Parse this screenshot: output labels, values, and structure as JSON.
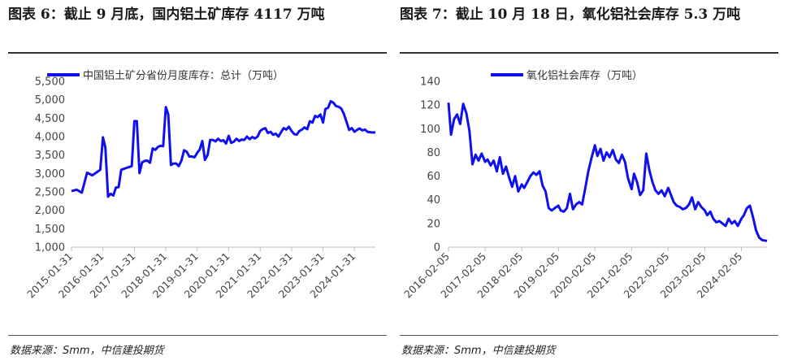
{
  "source_text": "数据来源：Smm，中信建投期货",
  "chart_data": [
    {
      "type": "line",
      "figure_title": "图表 6：截止 9 月底，国内铝土矿库存 4117 万吨",
      "series": [
        {
          "name": "中国铝土矿分省份月度库存：总计（万吨）",
          "color": "#1010ee"
        }
      ],
      "ylim": [
        1000,
        5500
      ],
      "yticks": [
        "1,000",
        "1,500",
        "2,000",
        "2,500",
        "3,000",
        "3,500",
        "4,000",
        "4,500",
        "5,000",
        "5,500"
      ],
      "xticks": [
        "2015-01-31",
        "2016-01-31",
        "2017-01-31",
        "2018-01-31",
        "2019-01-31",
        "2020-01-31",
        "2021-01-31",
        "2022-01-31",
        "2023-01-31",
        "2024-01-31"
      ],
      "xstart": "2015-01-31",
      "xend": "2024-09-30",
      "points": [
        [
          "2015-01-31",
          2520
        ],
        [
          "2015-03-31",
          2560
        ],
        [
          "2015-05-31",
          2480
        ],
        [
          "2015-07-31",
          3020
        ],
        [
          "2015-09-30",
          2950
        ],
        [
          "2015-11-30",
          3050
        ],
        [
          "2015-12-31",
          3100
        ],
        [
          "2016-01-31",
          3980
        ],
        [
          "2016-02-29",
          3700
        ],
        [
          "2016-03-31",
          2370
        ],
        [
          "2016-04-30",
          2450
        ],
        [
          "2016-05-31",
          2400
        ],
        [
          "2016-06-30",
          2620
        ],
        [
          "2016-07-31",
          2630
        ],
        [
          "2016-08-31",
          3100
        ],
        [
          "2016-10-31",
          3150
        ],
        [
          "2016-12-31",
          3200
        ],
        [
          "2017-01-31",
          4420
        ],
        [
          "2017-02-28",
          4420
        ],
        [
          "2017-03-31",
          3010
        ],
        [
          "2017-04-30",
          3300
        ],
        [
          "2017-05-31",
          3340
        ],
        [
          "2017-06-30",
          3350
        ],
        [
          "2017-07-31",
          3290
        ],
        [
          "2017-08-31",
          3680
        ],
        [
          "2017-09-30",
          3640
        ],
        [
          "2017-10-31",
          3720
        ],
        [
          "2017-11-30",
          3750
        ],
        [
          "2017-12-31",
          3740
        ],
        [
          "2018-01-31",
          4800
        ],
        [
          "2018-02-28",
          4600
        ],
        [
          "2018-03-31",
          3230
        ],
        [
          "2018-04-30",
          3270
        ],
        [
          "2018-05-31",
          3270
        ],
        [
          "2018-06-30",
          3200
        ],
        [
          "2018-07-31",
          3350
        ],
        [
          "2018-08-31",
          3630
        ],
        [
          "2018-09-30",
          3590
        ],
        [
          "2018-10-31",
          3460
        ],
        [
          "2018-11-30",
          3460
        ],
        [
          "2018-12-31",
          3440
        ],
        [
          "2019-01-31",
          3560
        ],
        [
          "2019-02-28",
          3650
        ],
        [
          "2019-03-31",
          3880
        ],
        [
          "2019-04-30",
          3370
        ],
        [
          "2019-05-31",
          3500
        ],
        [
          "2019-06-30",
          3910
        ],
        [
          "2019-07-31",
          3910
        ],
        [
          "2019-08-31",
          3870
        ],
        [
          "2019-09-30",
          3940
        ],
        [
          "2019-10-31",
          3880
        ],
        [
          "2019-11-30",
          3900
        ],
        [
          "2019-12-31",
          3810
        ],
        [
          "2020-01-31",
          4020
        ],
        [
          "2020-02-29",
          3830
        ],
        [
          "2020-03-31",
          3860
        ],
        [
          "2020-04-30",
          3940
        ],
        [
          "2020-05-31",
          3880
        ],
        [
          "2020-06-30",
          3920
        ],
        [
          "2020-07-31",
          3910
        ],
        [
          "2020-08-31",
          4000
        ],
        [
          "2020-09-30",
          3930
        ],
        [
          "2020-10-31",
          3990
        ],
        [
          "2020-11-30",
          3950
        ],
        [
          "2020-12-31",
          4000
        ],
        [
          "2021-01-31",
          4150
        ],
        [
          "2021-02-28",
          4200
        ],
        [
          "2021-03-31",
          4230
        ],
        [
          "2021-04-30",
          4100
        ],
        [
          "2021-05-31",
          4130
        ],
        [
          "2021-06-30",
          4050
        ],
        [
          "2021-07-31",
          4080
        ],
        [
          "2021-08-31",
          4000
        ],
        [
          "2021-09-30",
          4120
        ],
        [
          "2021-10-31",
          4230
        ],
        [
          "2021-11-30",
          4190
        ],
        [
          "2021-12-31",
          4270
        ],
        [
          "2022-01-31",
          4150
        ],
        [
          "2022-02-28",
          4070
        ],
        [
          "2022-03-31",
          4050
        ],
        [
          "2022-04-30",
          4150
        ],
        [
          "2022-05-31",
          4190
        ],
        [
          "2022-06-30",
          4250
        ],
        [
          "2022-07-31",
          4200
        ],
        [
          "2022-08-31",
          4420
        ],
        [
          "2022-09-30",
          4380
        ],
        [
          "2022-10-31",
          4560
        ],
        [
          "2022-11-30",
          4530
        ],
        [
          "2022-12-31",
          4600
        ],
        [
          "2023-01-31",
          4380
        ],
        [
          "2023-02-28",
          4750
        ],
        [
          "2023-03-31",
          4780
        ],
        [
          "2023-04-30",
          4960
        ],
        [
          "2023-05-31",
          4920
        ],
        [
          "2023-06-30",
          4830
        ],
        [
          "2023-07-31",
          4810
        ],
        [
          "2023-08-31",
          4760
        ],
        [
          "2023-09-30",
          4620
        ],
        [
          "2023-10-31",
          4400
        ],
        [
          "2023-11-30",
          4180
        ],
        [
          "2023-12-31",
          4230
        ],
        [
          "2024-01-31",
          4130
        ],
        [
          "2024-02-29",
          4180
        ],
        [
          "2024-03-31",
          4220
        ],
        [
          "2024-04-30",
          4170
        ],
        [
          "2024-05-31",
          4190
        ],
        [
          "2024-06-30",
          4130
        ],
        [
          "2024-07-31",
          4120
        ],
        [
          "2024-08-31",
          4110
        ],
        [
          "2024-09-30",
          4117
        ]
      ]
    },
    {
      "type": "line",
      "figure_title": "图表 7：截止 10 月 18 日，氧化铝社会库存 5.3 万吨",
      "series": [
        {
          "name": "氧化铝社会库存（万吨）",
          "color": "#1010ee"
        }
      ],
      "ylim": [
        0,
        140
      ],
      "yticks": [
        "0",
        "20",
        "40",
        "60",
        "80",
        "100",
        "120",
        "140"
      ],
      "xticks": [
        "2016-02-05",
        "2017-02-05",
        "2018-02-05",
        "2019-02-05",
        "2020-02-05",
        "2021-02-05",
        "2022-02-05",
        "2023-02-05",
        "2024-02-05"
      ],
      "xstart": "2016-02-05",
      "xend": "2024-10-18",
      "points": [
        [
          "2016-02-05",
          122
        ],
        [
          "2016-03-01",
          95
        ],
        [
          "2016-04-01",
          108
        ],
        [
          "2016-05-01",
          112
        ],
        [
          "2016-06-01",
          104
        ],
        [
          "2016-07-01",
          121
        ],
        [
          "2016-08-01",
          113
        ],
        [
          "2016-09-01",
          98
        ],
        [
          "2016-10-01",
          70
        ],
        [
          "2016-11-01",
          78
        ],
        [
          "2016-12-01",
          73
        ],
        [
          "2017-01-01",
          79
        ],
        [
          "2017-02-05",
          72
        ],
        [
          "2017-03-01",
          74
        ],
        [
          "2017-04-01",
          69
        ],
        [
          "2017-05-01",
          73
        ],
        [
          "2017-06-01",
          64
        ],
        [
          "2017-07-01",
          76
        ],
        [
          "2017-08-01",
          62
        ],
        [
          "2017-09-01",
          68
        ],
        [
          "2017-10-01",
          59
        ],
        [
          "2017-11-01",
          51
        ],
        [
          "2017-12-01",
          60
        ],
        [
          "2018-01-01",
          47
        ],
        [
          "2018-02-05",
          53
        ],
        [
          "2018-03-01",
          50
        ],
        [
          "2018-04-01",
          55
        ],
        [
          "2018-05-01",
          60
        ],
        [
          "2018-06-01",
          63
        ],
        [
          "2018-07-01",
          61
        ],
        [
          "2018-08-01",
          64
        ],
        [
          "2018-09-01",
          52
        ],
        [
          "2018-10-01",
          47
        ],
        [
          "2018-11-01",
          33
        ],
        [
          "2018-12-01",
          31
        ],
        [
          "2019-01-01",
          33
        ],
        [
          "2019-02-05",
          35
        ],
        [
          "2019-03-01",
          31
        ],
        [
          "2019-04-01",
          30
        ],
        [
          "2019-05-01",
          33
        ],
        [
          "2019-06-01",
          45
        ],
        [
          "2019-07-01",
          32
        ],
        [
          "2019-08-01",
          36
        ],
        [
          "2019-09-01",
          38
        ],
        [
          "2019-10-01",
          36
        ],
        [
          "2019-11-01",
          50
        ],
        [
          "2019-12-01",
          64
        ],
        [
          "2020-01-01",
          75
        ],
        [
          "2020-02-05",
          86
        ],
        [
          "2020-03-01",
          77
        ],
        [
          "2020-04-01",
          83
        ],
        [
          "2020-05-01",
          73
        ],
        [
          "2020-06-01",
          80
        ],
        [
          "2020-07-01",
          76
        ],
        [
          "2020-08-01",
          82
        ],
        [
          "2020-09-01",
          74
        ],
        [
          "2020-10-01",
          71
        ],
        [
          "2020-11-01",
          78
        ],
        [
          "2020-12-01",
          72
        ],
        [
          "2021-01-01",
          58
        ],
        [
          "2021-02-05",
          49
        ],
        [
          "2021-03-01",
          62
        ],
        [
          "2021-04-01",
          55
        ],
        [
          "2021-05-01",
          44
        ],
        [
          "2021-06-01",
          48
        ],
        [
          "2021-07-01",
          79
        ],
        [
          "2021-08-01",
          65
        ],
        [
          "2021-09-01",
          55
        ],
        [
          "2021-10-01",
          48
        ],
        [
          "2021-11-01",
          45
        ],
        [
          "2021-12-01",
          48
        ],
        [
          "2022-01-01",
          43
        ],
        [
          "2022-02-05",
          50
        ],
        [
          "2022-03-01",
          45
        ],
        [
          "2022-04-01",
          38
        ],
        [
          "2022-05-01",
          35
        ],
        [
          "2022-06-01",
          34
        ],
        [
          "2022-07-01",
          32
        ],
        [
          "2022-08-01",
          33
        ],
        [
          "2022-09-01",
          36
        ],
        [
          "2022-10-01",
          42
        ],
        [
          "2022-11-01",
          32
        ],
        [
          "2022-12-01",
          38
        ],
        [
          "2023-01-01",
          34
        ],
        [
          "2023-02-05",
          31
        ],
        [
          "2023-03-01",
          27
        ],
        [
          "2023-04-01",
          30
        ],
        [
          "2023-05-01",
          24
        ],
        [
          "2023-06-01",
          21
        ],
        [
          "2023-07-01",
          22
        ],
        [
          "2023-08-01",
          20
        ],
        [
          "2023-09-01",
          18
        ],
        [
          "2023-10-01",
          24
        ],
        [
          "2023-11-01",
          20
        ],
        [
          "2023-12-01",
          22
        ],
        [
          "2024-01-01",
          18
        ],
        [
          "2024-02-05",
          24
        ],
        [
          "2024-03-01",
          27
        ],
        [
          "2024-04-01",
          33
        ],
        [
          "2024-05-01",
          35
        ],
        [
          "2024-06-01",
          25
        ],
        [
          "2024-07-01",
          14
        ],
        [
          "2024-08-01",
          8
        ],
        [
          "2024-09-01",
          6
        ],
        [
          "2024-10-18",
          5.3
        ]
      ]
    }
  ]
}
